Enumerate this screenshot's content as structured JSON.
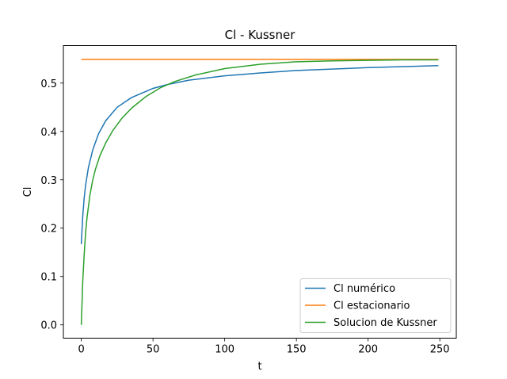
{
  "chart_data": {
    "type": "line",
    "title": "Cl - Kussner",
    "xlabel": "t",
    "ylabel": "Cl",
    "xlim": [
      -12.5,
      261.5
    ],
    "ylim": [
      -0.0275,
      0.5775
    ],
    "xticks": [
      0,
      50,
      100,
      150,
      200,
      250
    ],
    "yticks": [
      0.0,
      0.1,
      0.2,
      0.3,
      0.4,
      0.5
    ],
    "ytick_labels": [
      "0.0",
      "0.1",
      "0.2",
      "0.3",
      "0.4",
      "0.5"
    ],
    "grid": false,
    "legend_position": "lower-right",
    "series": [
      {
        "name": "Cl numérico",
        "color": "#1f77b4",
        "x": [
          0,
          1,
          2,
          3,
          5,
          8,
          12,
          17,
          25,
          35,
          50,
          60,
          75,
          100,
          125,
          150,
          175,
          200,
          225,
          249
        ],
        "y": [
          0.167,
          0.225,
          0.262,
          0.289,
          0.326,
          0.362,
          0.395,
          0.422,
          0.45,
          0.47,
          0.489,
          0.497,
          0.506,
          0.515,
          0.521,
          0.526,
          0.529,
          0.532,
          0.534,
          0.536
        ]
      },
      {
        "name": "Cl estacionario",
        "color": "#ff7f0e",
        "x": [
          0,
          249
        ],
        "y": [
          0.549,
          0.549
        ]
      },
      {
        "name": "Solucion de Kussner",
        "color": "#2ca02c",
        "x": [
          0,
          1,
          2,
          3,
          4,
          6,
          8,
          10,
          13,
          17,
          22,
          28,
          35,
          45,
          55,
          65,
          80,
          100,
          125,
          150,
          175,
          200,
          225,
          249
        ],
        "y": [
          0.0,
          0.09,
          0.145,
          0.19,
          0.222,
          0.268,
          0.3,
          0.323,
          0.35,
          0.376,
          0.402,
          0.426,
          0.448,
          0.472,
          0.49,
          0.503,
          0.517,
          0.53,
          0.539,
          0.544,
          0.546,
          0.547,
          0.548,
          0.548
        ]
      }
    ]
  }
}
